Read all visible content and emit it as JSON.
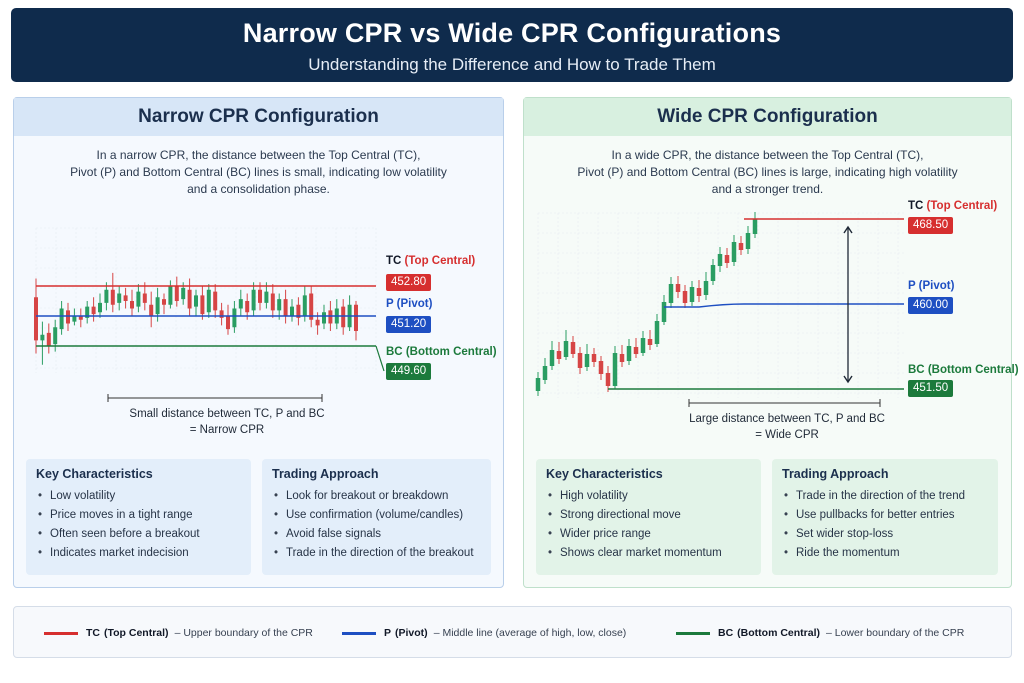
{
  "header": {
    "title": "Narrow CPR vs Wide CPR Configurations",
    "subtitle": "Understanding the Difference and How to Trade Them"
  },
  "colors": {
    "tc": "#d62f2f",
    "pivot": "#1e4fc2",
    "bc": "#1c7a3c",
    "bull": "#2a9d62",
    "bear": "#d64545"
  },
  "narrow": {
    "title": "Narrow CPR Configuration",
    "description": [
      "In a narrow CPR, the distance between the Top Central (TC),",
      "Pivot (P) and Bottom Central (BC) lines is small, indicating low volatility",
      "and a consolidation phase."
    ],
    "tc": {
      "abbr": "TC",
      "name": "(Top Central)",
      "value": "452.80"
    },
    "pivot": {
      "abbr": "P",
      "name": "(Pivot)",
      "value": "451.20"
    },
    "bc": {
      "abbr": "BC",
      "name": "(Bottom Central)",
      "value": "449.60"
    },
    "caption": [
      "Small distance between TC, P and BC",
      "= Narrow CPR"
    ],
    "characteristics": {
      "title": "Key Characteristics",
      "items": [
        "Low volatility",
        "Price moves in a tight range",
        "Often seen before a breakout",
        "Indicates market indecision"
      ]
    },
    "approach": {
      "title": "Trading Approach",
      "items": [
        "Look for breakout or breakdown",
        "Use confirmation (volume/candles)",
        "Avoid false signals",
        "Trade in the direction of the breakout"
      ]
    },
    "candles": [
      [
        452.2,
        449.9,
        453.2,
        449.2
      ],
      [
        449.9,
        450.2,
        450.9,
        448.6
      ],
      [
        450.3,
        449.6,
        450.8,
        449.2
      ],
      [
        449.7,
        450.6,
        451.0,
        449.3
      ],
      [
        450.5,
        451.6,
        452.0,
        450.2
      ],
      [
        451.5,
        450.8,
        451.9,
        450.4
      ],
      [
        450.9,
        451.2,
        451.6,
        450.7
      ],
      [
        451.2,
        451.0,
        451.6,
        450.6
      ],
      [
        451.1,
        451.7,
        452.0,
        450.8
      ],
      [
        451.7,
        451.3,
        452.2,
        450.9
      ],
      [
        451.4,
        451.9,
        452.4,
        451.1
      ],
      [
        451.9,
        452.6,
        453.0,
        451.5
      ],
      [
        452.6,
        451.8,
        453.5,
        451.4
      ],
      [
        451.9,
        452.4,
        452.8,
        451.5
      ],
      [
        452.3,
        452.0,
        452.7,
        451.6
      ],
      [
        452.0,
        451.6,
        452.6,
        451.2
      ],
      [
        451.7,
        452.5,
        452.9,
        451.4
      ],
      [
        452.4,
        451.9,
        453.0,
        451.5
      ],
      [
        451.8,
        451.2,
        452.5,
        450.6
      ],
      [
        451.3,
        452.2,
        452.7,
        450.9
      ],
      [
        452.1,
        451.8,
        452.4,
        451.3
      ],
      [
        451.8,
        452.8,
        453.1,
        451.6
      ],
      [
        452.8,
        452.0,
        453.3,
        451.7
      ],
      [
        452.1,
        452.7,
        453.0,
        451.8
      ],
      [
        452.6,
        451.6,
        453.2,
        451.2
      ],
      [
        451.7,
        452.3,
        452.6,
        451.2
      ],
      [
        452.3,
        451.3,
        452.8,
        451.0
      ],
      [
        451.4,
        452.6,
        452.9,
        451.1
      ],
      [
        452.5,
        451.5,
        452.9,
        451.1
      ],
      [
        451.5,
        451.1,
        451.9,
        450.7
      ],
      [
        451.2,
        450.5,
        451.8,
        450.2
      ],
      [
        450.6,
        451.6,
        452.0,
        450.3
      ],
      [
        451.6,
        452.1,
        452.6,
        451.2
      ],
      [
        452.0,
        451.4,
        452.4,
        451.0
      ],
      [
        451.5,
        452.6,
        453.0,
        451.2
      ],
      [
        452.6,
        451.9,
        453.0,
        451.5
      ],
      [
        451.9,
        452.5,
        453.0,
        451.6
      ],
      [
        452.4,
        451.5,
        452.9,
        451.1
      ],
      [
        451.5,
        452.1,
        452.4,
        451.0
      ],
      [
        452.1,
        451.2,
        452.6,
        450.8
      ],
      [
        451.2,
        451.7,
        452.1,
        450.9
      ],
      [
        451.8,
        451.1,
        452.2,
        450.7
      ],
      [
        451.2,
        452.3,
        452.8,
        450.9
      ],
      [
        452.4,
        451.0,
        452.8,
        450.6
      ],
      [
        451.0,
        450.7,
        451.4,
        450.2
      ],
      [
        450.8,
        451.4,
        451.8,
        450.5
      ],
      [
        451.5,
        450.8,
        452.0,
        450.4
      ],
      [
        450.8,
        451.6,
        452.1,
        450.5
      ],
      [
        451.7,
        450.6,
        452.1,
        450.2
      ],
      [
        450.6,
        451.8,
        452.3,
        450.4
      ],
      [
        451.8,
        450.4,
        452.0,
        449.9
      ]
    ]
  },
  "wide": {
    "title": "Wide CPR Configuration",
    "description": [
      "In a wide CPR, the distance between the Top Central (TC),",
      "Pivot (P) and Bottom Central (BC) lines is large, indicating high volatility",
      "and a stronger trend."
    ],
    "tc": {
      "abbr": "TC",
      "name": "(Top Central)",
      "value": "468.50"
    },
    "pivot": {
      "abbr": "P",
      "name": "(Pivot)",
      "value": "460.00"
    },
    "bc": {
      "abbr": "BC",
      "name": "(Bottom Central)",
      "value": "451.50"
    },
    "caption": [
      "Large distance between TC, P and BC",
      "= Wide CPR"
    ],
    "characteristics": {
      "title": "Key Characteristics",
      "items": [
        "High volatility",
        "Strong directional move",
        "Wider price range",
        "Shows clear market momentum"
      ]
    },
    "approach": {
      "title": "Trading Approach",
      "items": [
        "Trade in the direction of the trend",
        "Use pullbacks for better entries",
        "Set wider stop-loss",
        "Ride the momentum"
      ]
    },
    "candles": [
      [
        451.3,
        452.6,
        453.2,
        450.8
      ],
      [
        452.4,
        453.8,
        454.6,
        452.0
      ],
      [
        453.8,
        455.4,
        456.3,
        453.4
      ],
      [
        455.3,
        454.5,
        456.2,
        454.0
      ],
      [
        454.7,
        456.3,
        457.4,
        454.4
      ],
      [
        456.2,
        455.0,
        456.8,
        454.6
      ],
      [
        455.1,
        453.6,
        455.7,
        453.0
      ],
      [
        453.7,
        455.0,
        456.0,
        453.3
      ],
      [
        455.0,
        454.2,
        455.6,
        453.7
      ],
      [
        454.3,
        453.0,
        454.8,
        452.4
      ],
      [
        453.1,
        451.8,
        453.8,
        451.2
      ],
      [
        451.8,
        455.1,
        455.8,
        451.5
      ],
      [
        455.0,
        454.2,
        455.9,
        453.7
      ],
      [
        454.3,
        455.8,
        456.5,
        453.9
      ],
      [
        455.7,
        455.0,
        456.6,
        454.6
      ],
      [
        455.1,
        456.6,
        457.3,
        454.8
      ],
      [
        456.5,
        455.9,
        457.4,
        455.4
      ],
      [
        456.0,
        458.3,
        459.0,
        455.7
      ],
      [
        458.2,
        460.2,
        460.9,
        457.9
      ],
      [
        460.1,
        462.0,
        462.7,
        459.6
      ],
      [
        462.0,
        461.2,
        462.8,
        460.6
      ],
      [
        461.3,
        460.1,
        461.9,
        459.6
      ],
      [
        460.2,
        461.7,
        462.3,
        459.8
      ],
      [
        461.6,
        460.8,
        462.4,
        460.2
      ],
      [
        460.9,
        462.3,
        463.2,
        460.4
      ],
      [
        462.3,
        463.9,
        464.5,
        461.9
      ],
      [
        463.8,
        465.0,
        465.7,
        463.2
      ],
      [
        464.9,
        464.1,
        465.6,
        463.6
      ],
      [
        464.2,
        466.2,
        466.9,
        463.8
      ],
      [
        466.1,
        465.4,
        466.8,
        464.9
      ],
      [
        465.5,
        467.1,
        467.8,
        465.0
      ],
      [
        467.0,
        468.5,
        469.2,
        466.6
      ]
    ]
  },
  "legend": {
    "tc": {
      "abbr": "TC",
      "name": "(Top Central)",
      "desc": "– Upper boundary of the CPR"
    },
    "pivot": {
      "abbr": "P",
      "name": "(Pivot)",
      "desc": "– Middle line (average of high, low, close)"
    },
    "bc": {
      "abbr": "BC",
      "name": "(Bottom Central)",
      "desc": "– Lower boundary of the CPR"
    }
  }
}
